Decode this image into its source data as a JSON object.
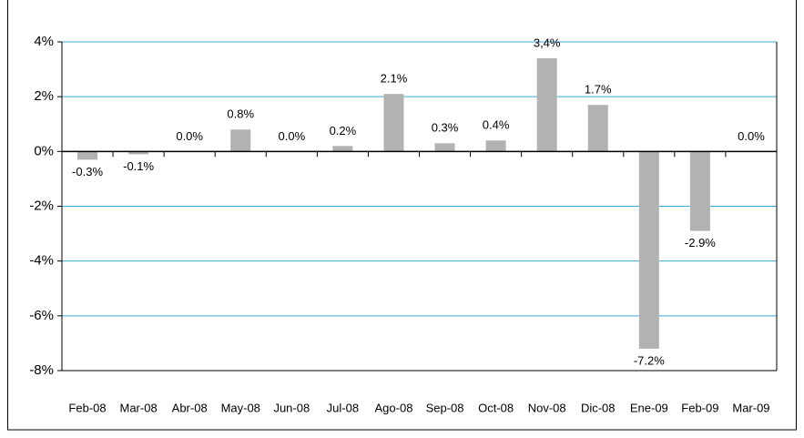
{
  "chart_data": {
    "type": "bar",
    "categories": [
      "Feb-08",
      "Mar-08",
      "Abr-08",
      "May-08",
      "Jun-08",
      "Jul-08",
      "Ago-08",
      "Sep-08",
      "Oct-08",
      "Nov-08",
      "Dic-08",
      "Ene-09",
      "Feb-09",
      "Mar-09"
    ],
    "values": [
      -0.3,
      -0.1,
      0.0,
      0.8,
      0.0,
      0.2,
      2.1,
      0.3,
      0.4,
      3.4,
      1.7,
      -7.2,
      -2.9,
      0.0
    ],
    "value_labels": [
      "-0.3%",
      "-0.1%",
      "0.0%",
      "0.8%",
      "0.0%",
      "0.2%",
      "2.1%",
      "0.3%",
      "0.4%",
      "3,4%",
      "1.7%",
      "-7.2%",
      "-2.9%",
      "0.0%"
    ],
    "color": "#b2b2b2",
    "ylim": [
      -8,
      4
    ],
    "yticks": [
      {
        "value": -8,
        "label": "-8%"
      },
      {
        "value": -6,
        "label": "-6%"
      },
      {
        "value": -4,
        "label": "-4%"
      },
      {
        "value": -2,
        "label": "-2%"
      },
      {
        "value": 0,
        "label": "0%"
      },
      {
        "value": 2,
        "label": "2%"
      },
      {
        "value": 4,
        "label": "4%"
      }
    ],
    "grid": true,
    "grid_color": "#3fa9d6"
  }
}
